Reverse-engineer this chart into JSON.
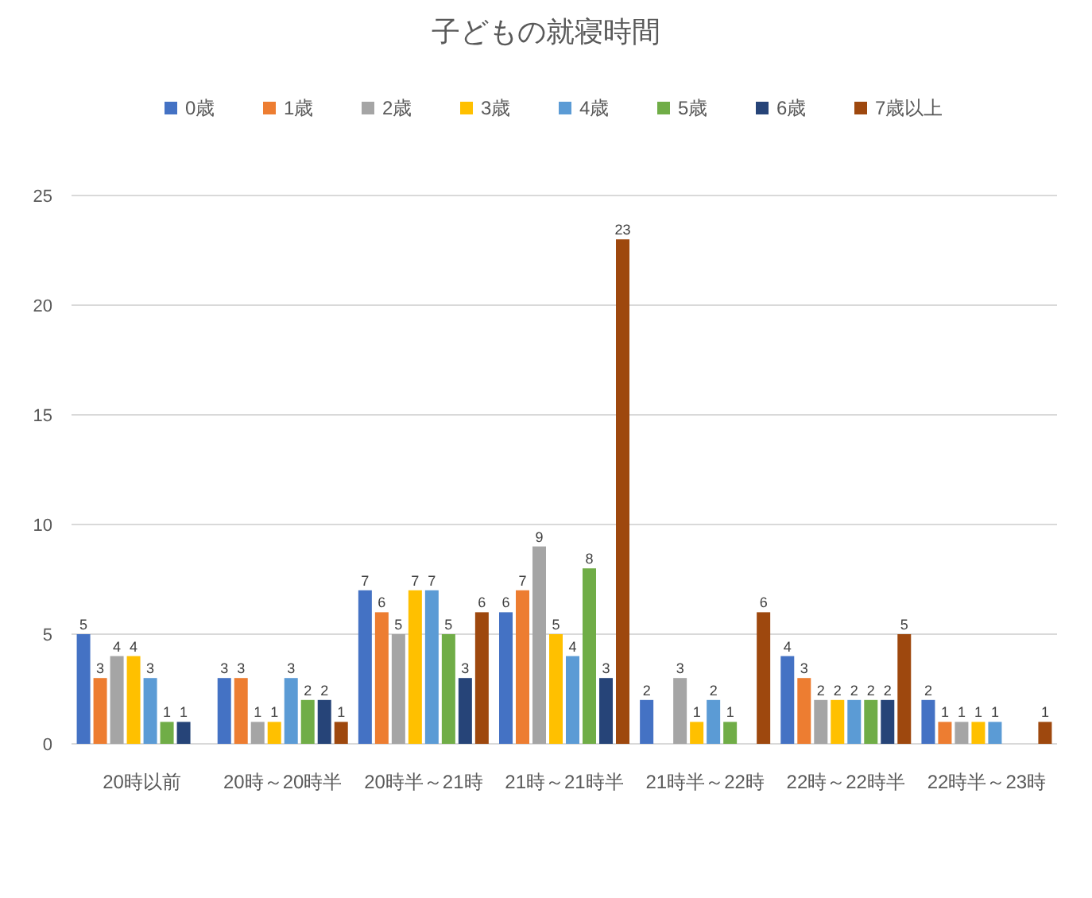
{
  "chart_data": {
    "type": "bar",
    "title": "子どもの就寝時間",
    "categories": [
      "20時以前",
      "20時～20時半",
      "20時半～21時",
      "21時～21時半",
      "21時半～22時",
      "22時～22時半",
      "22時半～23時"
    ],
    "series": [
      {
        "name": "0歳",
        "color": "#4472c4",
        "values": [
          5,
          3,
          7,
          6,
          2,
          4,
          2
        ],
        "value_labels": [
          "5",
          "3",
          "7",
          "6",
          "2",
          "4",
          "2"
        ]
      },
      {
        "name": "1歳",
        "color": "#ed7d31",
        "values": [
          3,
          3,
          6,
          7,
          0,
          3,
          1
        ],
        "value_labels": [
          "3",
          "3",
          "6",
          "7",
          null,
          "3",
          "1"
        ]
      },
      {
        "name": "2歳",
        "color": "#a5a5a5",
        "values": [
          4,
          1,
          5,
          9,
          3,
          2,
          1
        ],
        "value_labels": [
          "4",
          "1",
          "5",
          "9",
          "3",
          "2",
          "1"
        ]
      },
      {
        "name": "3歳",
        "color": "#ffc000",
        "values": [
          4,
          1,
          7,
          5,
          1,
          2,
          1
        ],
        "value_labels": [
          "4",
          "1",
          "7",
          "5",
          "1",
          "2",
          "1"
        ]
      },
      {
        "name": "4歳",
        "color": "#5b9bd5",
        "values": [
          3,
          3,
          7,
          4,
          2,
          2,
          1
        ],
        "value_labels": [
          "3",
          "3",
          "7",
          "4",
          "2",
          "2",
          "1"
        ]
      },
      {
        "name": "5歳",
        "color": "#70ad47",
        "values": [
          1,
          2,
          5,
          8,
          1,
          2,
          0
        ],
        "value_labels": [
          "1",
          "2",
          "5",
          "8",
          "1",
          "2",
          null
        ]
      },
      {
        "name": "6歳",
        "color": "#264478",
        "values": [
          1,
          2,
          3,
          3,
          0,
          2,
          0
        ],
        "value_labels": [
          "1",
          "2",
          "3",
          "3",
          null,
          "2",
          null
        ]
      },
      {
        "name": "7歳以上",
        "color": "#9e480e",
        "values": [
          0,
          1,
          6,
          23,
          6,
          5,
          1
        ],
        "value_labels": [
          null,
          "1",
          "6",
          "23",
          "6",
          "5",
          "1"
        ]
      }
    ],
    "ylim": [
      0,
      25
    ],
    "yticks": [
      0,
      5,
      10,
      15,
      20,
      25
    ],
    "grid": "y",
    "legend": "top"
  }
}
